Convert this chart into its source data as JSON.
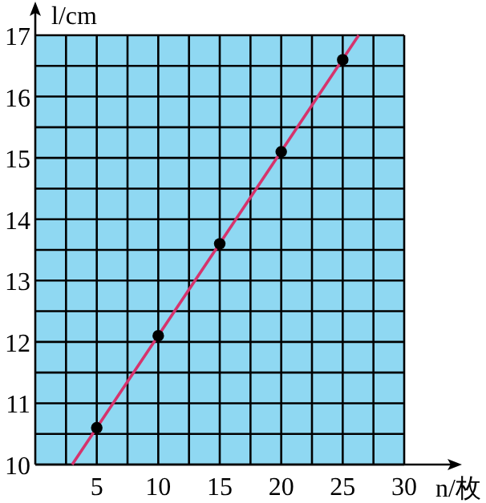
{
  "chart_data": {
    "type": "scatter",
    "xlabel": "n/枚",
    "ylabel": "l/cm",
    "xlim": [
      0,
      30
    ],
    "ylim": [
      10,
      17
    ],
    "xticks": [
      {
        "value": 2.5,
        "label": null
      },
      5,
      {
        "value": 7.5,
        "label": null
      },
      10,
      {
        "value": 12.5,
        "label": null
      },
      15,
      {
        "value": 17.5,
        "label": null
      },
      20,
      {
        "value": 22.5,
        "label": null
      },
      25,
      {
        "value": 27.5,
        "label": null
      },
      30
    ],
    "yticks": [
      10,
      {
        "value": 10.5,
        "label": null
      },
      11,
      {
        "value": 11.5,
        "label": null
      },
      12,
      {
        "value": 12.5,
        "label": null
      },
      13,
      {
        "value": 13.5,
        "label": null
      },
      14,
      {
        "value": 14.5,
        "label": null
      },
      15,
      {
        "value": 15.5,
        "label": null
      },
      16,
      {
        "value": 16.5,
        "label": null
      },
      17
    ],
    "grid": true,
    "marker": "circle",
    "series": [
      {
        "type": "line",
        "color": "#d6336c",
        "x": [
          3,
          26.3
        ],
        "values": [
          10,
          17
        ],
        "marker": "none"
      },
      {
        "color": "#000000",
        "x": [
          5,
          10,
          15,
          20,
          25
        ],
        "values": [
          10.6,
          12.1,
          13.6,
          15.1,
          16.6
        ]
      }
    ]
  }
}
